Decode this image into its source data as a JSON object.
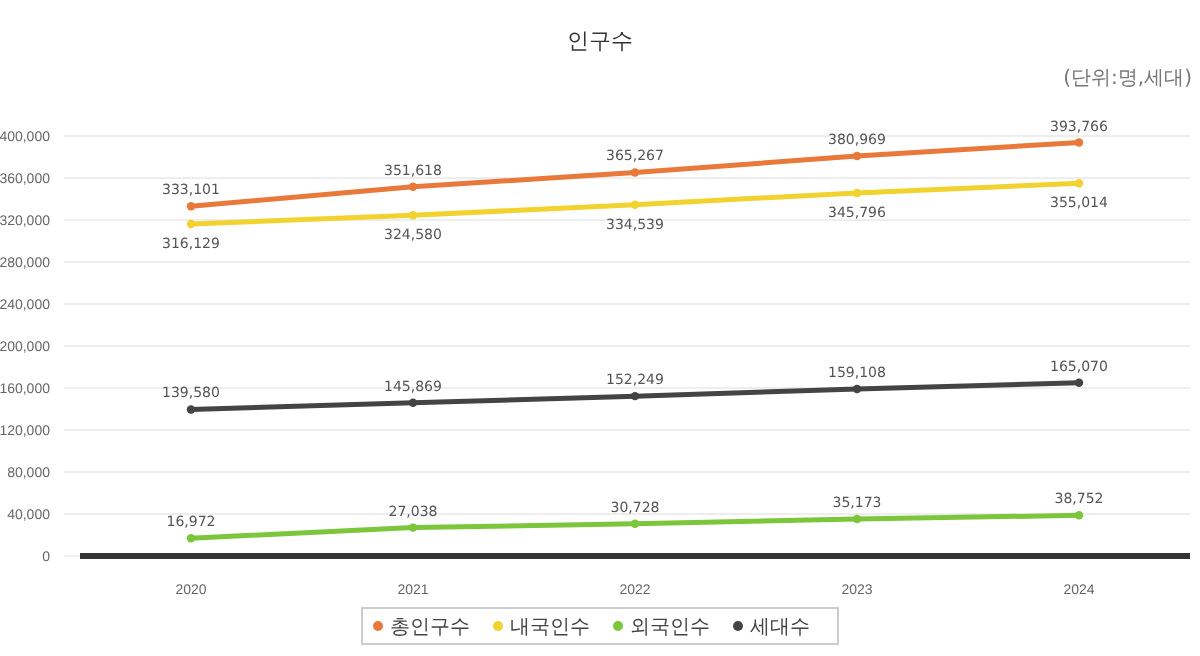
{
  "chart_data": {
    "type": "line",
    "title": "인구수",
    "annotations": [
      "(단위:명,세대)"
    ],
    "categories": [
      "2020",
      "2021",
      "2022",
      "2023",
      "2024"
    ],
    "series": [
      {
        "name": "총인구수",
        "color": "#e8793a",
        "values": [
          333101,
          351618,
          365267,
          380969,
          393766
        ],
        "value_labels": [
          "333,101",
          "351,618",
          "365,267",
          "380,969",
          "393,766"
        ]
      },
      {
        "name": "내국인수",
        "color": "#f2d22e",
        "values": [
          316129,
          324580,
          334539,
          345796,
          355014
        ],
        "value_labels": [
          "316,129",
          "324,580",
          "334,539",
          "345,796",
          "355,014"
        ]
      },
      {
        "name": "외국인수",
        "color": "#7cc63c",
        "values": [
          16972,
          27038,
          30728,
          35173,
          38752
        ],
        "value_labels": [
          "16,972",
          "27,038",
          "30,728",
          "35,173",
          "38,752"
        ]
      },
      {
        "name": "세대수",
        "color": "#444444",
        "values": [
          139580,
          145869,
          152249,
          159108,
          165070
        ],
        "value_labels": [
          "139,580",
          "145,869",
          "152,249",
          "159,108",
          "165,070"
        ]
      }
    ],
    "ylim": [
      0,
      400000
    ],
    "yticks": [
      0,
      {
        "value": 40000,
        "label": "40,000"
      },
      {
        "value": 80000,
        "label": "80,000"
      },
      {
        "value": 120000,
        "label": "120,000"
      },
      {
        "value": 160000,
        "label": "160,000"
      },
      {
        "value": 200000,
        "label": "200,000"
      },
      {
        "value": 240000,
        "label": "240,000"
      },
      {
        "value": 280000,
        "label": "280,000"
      },
      {
        "value": 320000,
        "label": "320,000"
      },
      {
        "value": 360000,
        "label": "360,000"
      },
      {
        "value": 400000,
        "label": "400,000"
      }
    ],
    "grid": "y",
    "legend": "bottom",
    "marker": "circle",
    "line_style": "solid"
  }
}
